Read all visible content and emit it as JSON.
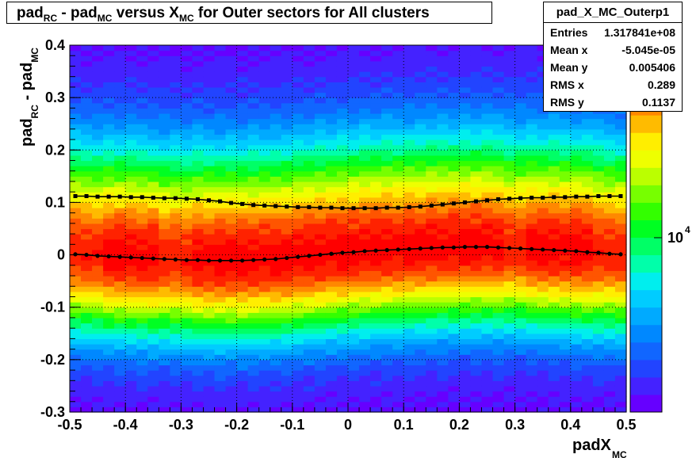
{
  "title": {
    "parts": [
      "pad",
      "RC",
      " - pad",
      "MC",
      " versus X",
      "MC",
      " for Outer sectors for All clusters"
    ]
  },
  "stats": {
    "name": "pad_X_MC_Outerp1",
    "rows": [
      {
        "key": "Entries",
        "value": "1.317841e+08"
      },
      {
        "key": "Mean x",
        "value": "-5.045e-05"
      },
      {
        "key": "Mean y",
        "value": "0.005406"
      },
      {
        "key": "RMS x",
        "value": "0.289"
      },
      {
        "key": "RMS y",
        "value": "0.1137"
      }
    ]
  },
  "chart_data": {
    "type": "heatmap",
    "title": "pad_RC - pad_MC versus X_MC for Outer sectors for All clusters",
    "xlabel": {
      "main": "padX",
      "sub": "MC"
    },
    "ylabel": {
      "main": "pad",
      "sub1": "RC",
      "mid": " - pad",
      "sub2": "MC"
    },
    "xlim": [
      -0.5,
      0.5
    ],
    "ylim": [
      -0.3,
      0.4
    ],
    "x_ticks": [
      "-0.5",
      "-0.4",
      "-0.3",
      "-0.2",
      "-0.1",
      "0",
      "0.1",
      "0.2",
      "0.3",
      "0.4",
      "0.5"
    ],
    "y_ticks": [
      "-0.3",
      "-0.2",
      "-0.1",
      "0",
      "0.1",
      "0.2",
      "0.3",
      "0.4"
    ],
    "grid": true,
    "z_scale": "log",
    "z_label": {
      "base": "10",
      "exp": "4"
    },
    "palette": [
      "#6600ff",
      "#4422ff",
      "#2244ff",
      "#1166ff",
      "#0088ff",
      "#00aaff",
      "#00ccff",
      "#00eeee",
      "#00ffaa",
      "#00ff66",
      "#00ff22",
      "#33ff00",
      "#77ff00",
      "#bbff00",
      "#eeff00",
      "#ffee00",
      "#ffbb00",
      "#ff8800",
      "#ff5500",
      "#ff2200",
      "#ff0000"
    ],
    "series": [
      {
        "marker": "square",
        "x": [
          -0.49,
          -0.47,
          -0.45,
          -0.43,
          -0.41,
          -0.39,
          -0.37,
          -0.35,
          -0.33,
          -0.31,
          -0.29,
          -0.27,
          -0.25,
          -0.23,
          -0.21,
          -0.19,
          -0.17,
          -0.15,
          -0.13,
          -0.11,
          -0.09,
          -0.07,
          -0.05,
          -0.03,
          -0.01,
          0.01,
          0.03,
          0.05,
          0.07,
          0.09,
          0.11,
          0.13,
          0.15,
          0.17,
          0.19,
          0.21,
          0.23,
          0.25,
          0.27,
          0.29,
          0.31,
          0.33,
          0.35,
          0.37,
          0.39,
          0.41,
          0.43,
          0.45,
          0.47,
          0.49
        ],
        "y": [
          0.112,
          0.112,
          0.111,
          0.111,
          0.111,
          0.11,
          0.11,
          0.109,
          0.108,
          0.108,
          0.107,
          0.106,
          0.104,
          0.102,
          0.099,
          0.097,
          0.095,
          0.094,
          0.093,
          0.092,
          0.091,
          0.091,
          0.09,
          0.09,
          0.089,
          0.089,
          0.089,
          0.089,
          0.09,
          0.09,
          0.091,
          0.092,
          0.094,
          0.096,
          0.098,
          0.1,
          0.102,
          0.104,
          0.106,
          0.107,
          0.108,
          0.109,
          0.109,
          0.11,
          0.11,
          0.111,
          0.111,
          0.112,
          0.112,
          0.112
        ]
      },
      {
        "marker": "circle",
        "x": [
          -0.49,
          -0.47,
          -0.45,
          -0.43,
          -0.41,
          -0.39,
          -0.37,
          -0.35,
          -0.33,
          -0.31,
          -0.29,
          -0.27,
          -0.25,
          -0.23,
          -0.21,
          -0.19,
          -0.17,
          -0.15,
          -0.13,
          -0.11,
          -0.09,
          -0.07,
          -0.05,
          -0.03,
          -0.01,
          0.01,
          0.03,
          0.05,
          0.07,
          0.09,
          0.11,
          0.13,
          0.15,
          0.17,
          0.19,
          0.21,
          0.23,
          0.25,
          0.27,
          0.29,
          0.31,
          0.33,
          0.35,
          0.37,
          0.39,
          0.41,
          0.43,
          0.45,
          0.47,
          0.49
        ],
        "y": [
          0.001,
          0.0,
          -0.002,
          -0.003,
          -0.004,
          -0.005,
          -0.006,
          -0.007,
          -0.008,
          -0.009,
          -0.01,
          -0.01,
          -0.011,
          -0.011,
          -0.011,
          -0.011,
          -0.01,
          -0.009,
          -0.008,
          -0.006,
          -0.004,
          -0.002,
          0.0,
          0.002,
          0.004,
          0.005,
          0.007,
          0.008,
          0.009,
          0.01,
          0.011,
          0.012,
          0.013,
          0.014,
          0.014,
          0.015,
          0.015,
          0.015,
          0.014,
          0.013,
          0.012,
          0.011,
          0.01,
          0.009,
          0.008,
          0.007,
          0.005,
          0.004,
          0.002,
          0.001
        ]
      }
    ]
  }
}
